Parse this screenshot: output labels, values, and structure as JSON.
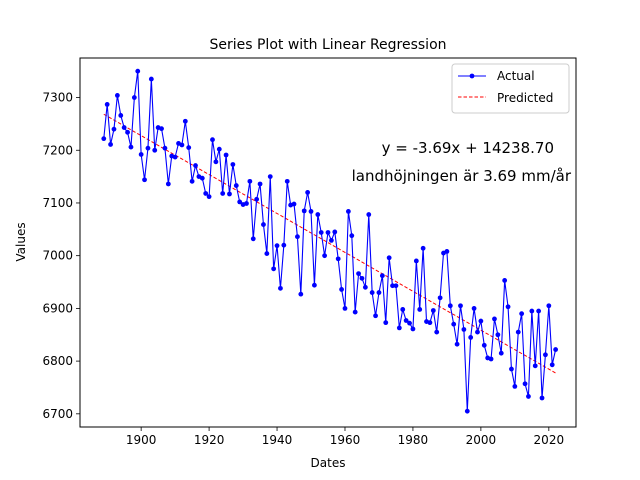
{
  "chart_data": {
    "type": "line",
    "title": "Series Plot with Linear Regression",
    "xlabel": "Dates",
    "ylabel": "Values",
    "xlim": [
      1882,
      2028
    ],
    "ylim": [
      6675,
      7375
    ],
    "xticks": [
      1900,
      1920,
      1940,
      1960,
      1980,
      2000,
      2020
    ],
    "yticks": [
      6700,
      6800,
      6900,
      7000,
      7100,
      7200,
      7300
    ],
    "legend_position": "top-right",
    "annotations": [
      "y = -3.69x + 14238.70",
      "landhöjningen är 3.69 mm/år"
    ],
    "series": [
      {
        "name": "Actual",
        "style": "line-with-markers",
        "color": "#0000ff",
        "x": [
          1889,
          1890,
          1891,
          1892,
          1893,
          1894,
          1895,
          1896,
          1897,
          1898,
          1899,
          1900,
          1901,
          1902,
          1903,
          1904,
          1905,
          1906,
          1907,
          1908,
          1909,
          1910,
          1911,
          1912,
          1913,
          1914,
          1915,
          1916,
          1917,
          1918,
          1919,
          1920,
          1921,
          1922,
          1923,
          1924,
          1925,
          1926,
          1927,
          1928,
          1929,
          1930,
          1931,
          1932,
          1933,
          1934,
          1935,
          1936,
          1937,
          1938,
          1939,
          1940,
          1941,
          1942,
          1943,
          1944,
          1945,
          1946,
          1947,
          1948,
          1949,
          1950,
          1951,
          1952,
          1953,
          1954,
          1955,
          1956,
          1957,
          1958,
          1959,
          1960,
          1961,
          1962,
          1963,
          1964,
          1965,
          1966,
          1967,
          1968,
          1969,
          1970,
          1971,
          1972,
          1973,
          1974,
          1975,
          1976,
          1977,
          1978,
          1979,
          1980,
          1981,
          1982,
          1983,
          1984,
          1985,
          1986,
          1987,
          1988,
          1989,
          1990,
          1991,
          1992,
          1993,
          1994,
          1995,
          1996,
          1997,
          1998,
          1999,
          2000,
          2001,
          2002,
          2003,
          2004,
          2005,
          2006,
          2007,
          2008,
          2009,
          2010,
          2011,
          2012,
          2013,
          2014,
          2015,
          2016,
          2017,
          2018,
          2019,
          2020,
          2021,
          2022
        ],
        "y": [
          7222,
          7287,
          7211,
          7240,
          7304,
          7266,
          7243,
          7234,
          7206,
          7300,
          7350,
          7192,
          7144,
          7204,
          7335,
          7200,
          7243,
          7241,
          7204,
          7136,
          7189,
          7187,
          7213,
          7210,
          7255,
          7205,
          7141,
          7171,
          7150,
          7147,
          7118,
          7112,
          7220,
          7178,
          7202,
          7118,
          7191,
          7117,
          7173,
          7133,
          7102,
          7097,
          7099,
          7141,
          7032,
          7107,
          7136,
          7059,
          7004,
          7150,
          6975,
          7019,
          6938,
          7020,
          7141,
          7096,
          7098,
          7036,
          6927,
          7085,
          7120,
          7084,
          6944,
          7078,
          7044,
          7000,
          7044,
          7029,
          7045,
          6994,
          6936,
          6900,
          7084,
          7038,
          6893,
          6966,
          6957,
          6940,
          7078,
          6930,
          6886,
          6930,
          6962,
          6873,
          6996,
          6943,
          6943,
          6863,
          6898,
          6877,
          6872,
          6861,
          6990,
          6898,
          7014,
          6875,
          6873,
          6896,
          6855,
          6920,
          7005,
          7008,
          6905,
          6870,
          6832,
          6905,
          6860,
          6705,
          6845,
          6900,
          6855,
          6876,
          6830,
          6806,
          6804,
          6880,
          6850,
          6815,
          6953,
          6903,
          6785,
          6752,
          6855,
          6890,
          6757,
          6733,
          6895,
          6791,
          6895,
          6730,
          6812,
          6905,
          6793,
          6822
        ]
      },
      {
        "name": "Predicted",
        "style": "dashed-line",
        "color": "#ff0000",
        "slope": -3.69,
        "intercept": 14238.7,
        "x": [
          1889,
          2022
        ]
      }
    ]
  }
}
